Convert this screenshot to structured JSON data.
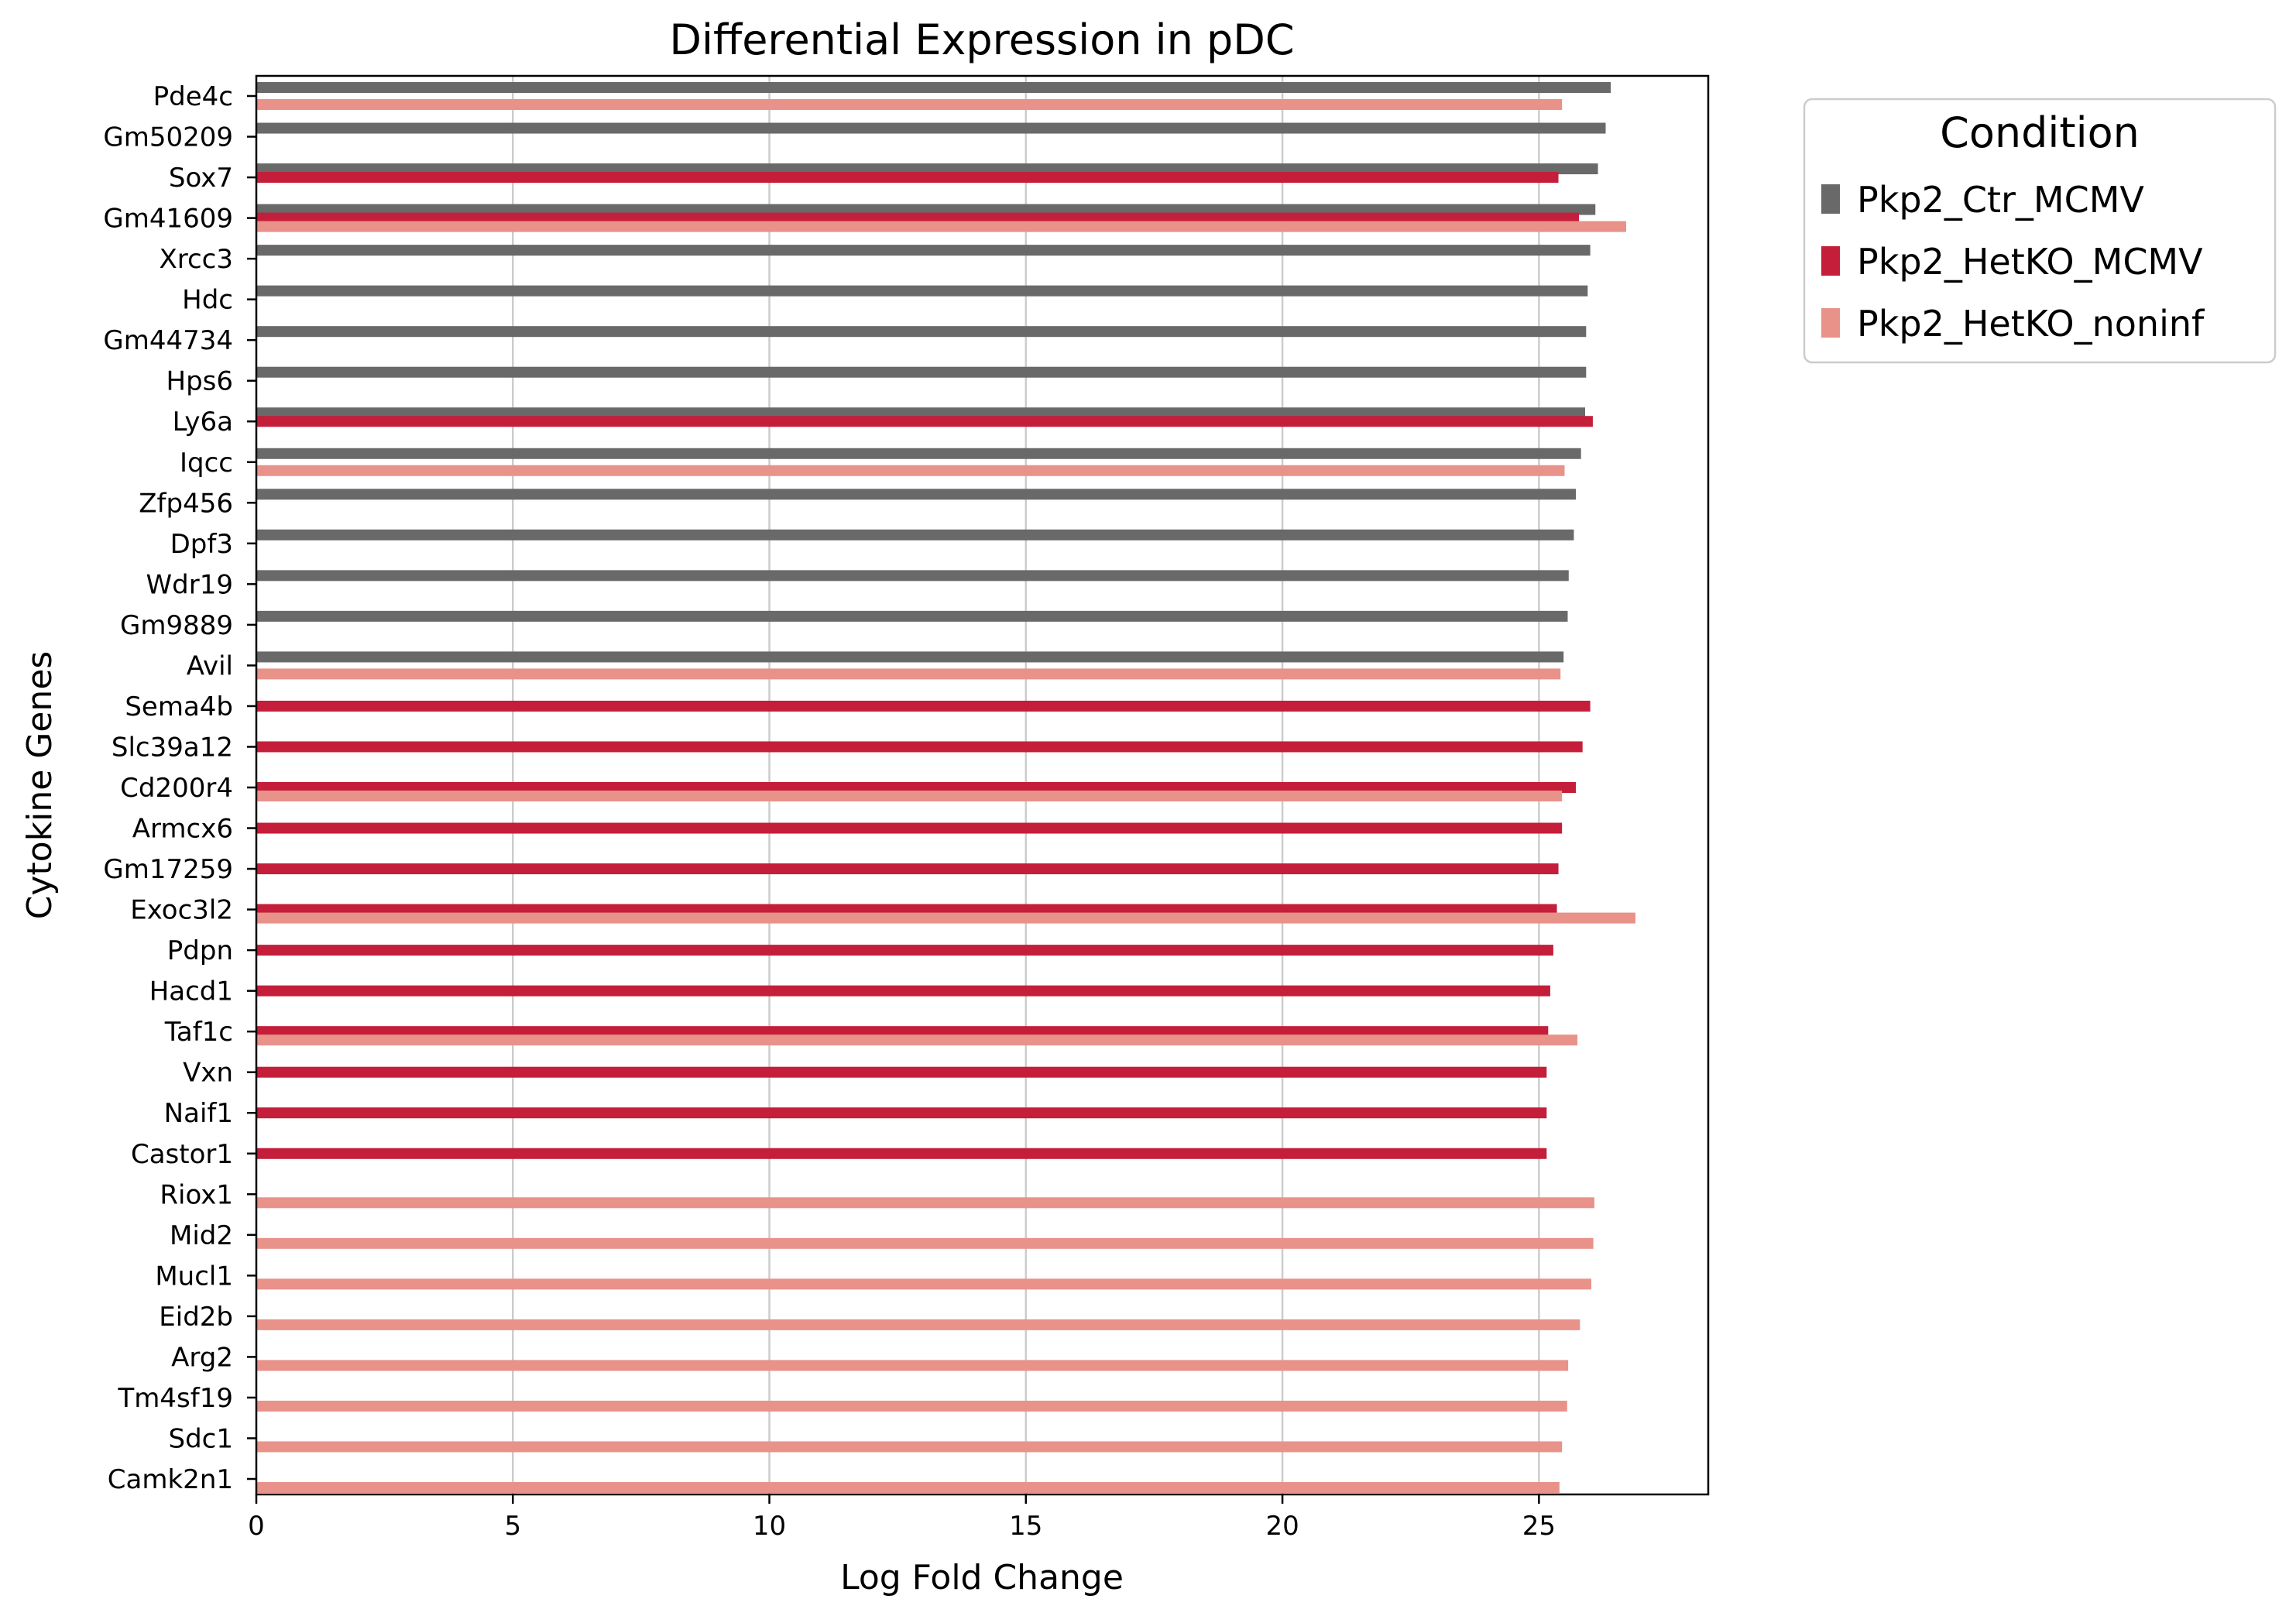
{
  "chart_data": {
    "type": "bar",
    "orientation": "horizontal",
    "title": "Differential Expression in pDC",
    "xlabel": "Log Fold Change",
    "ylabel": "Cytokine Genes",
    "xlim": [
      0,
      28.3
    ],
    "xticks": [
      0,
      5,
      10,
      15,
      20,
      25
    ],
    "grid": "vertical gridlines",
    "legend": {
      "title": "Condition",
      "placement": "outside-upper-right"
    },
    "categories": [
      "Pde4c",
      "Gm50209",
      "Sox7",
      "Gm41609",
      "Xrcc3",
      "Hdc",
      "Gm44734",
      "Hps6",
      "Ly6a",
      "Iqcc",
      "Zfp456",
      "Dpf3",
      "Wdr19",
      "Gm9889",
      "Avil",
      "Sema4b",
      "Slc39a12",
      "Cd200r4",
      "Armcx6",
      "Gm17259",
      "Exoc3l2",
      "Pdpn",
      "Hacd1",
      "Taf1c",
      "Vxn",
      "Naif1",
      "Castor1",
      "Riox1",
      "Mid2",
      "Mucl1",
      "Eid2b",
      "Arg2",
      "Tm4sf19",
      "Sdc1",
      "Camk2n1"
    ],
    "series": [
      {
        "name": "Pkp2_Ctr_MCMV",
        "color": "#696969",
        "values": [
          26.4,
          26.3,
          26.15,
          26.1,
          26.0,
          25.95,
          25.92,
          25.92,
          25.9,
          25.82,
          25.72,
          25.68,
          25.58,
          25.56,
          25.48,
          null,
          null,
          null,
          null,
          null,
          null,
          null,
          null,
          null,
          null,
          null,
          null,
          null,
          null,
          null,
          null,
          null,
          null,
          null,
          null
        ]
      },
      {
        "name": "Pkp2_HetKO_MCMV",
        "color": "#c41e3a",
        "values": [
          null,
          null,
          25.38,
          25.78,
          null,
          null,
          null,
          null,
          26.05,
          null,
          null,
          null,
          null,
          null,
          null,
          26.0,
          25.85,
          25.72,
          25.45,
          25.38,
          25.35,
          25.28,
          25.22,
          25.18,
          25.15,
          25.15,
          25.15,
          null,
          null,
          null,
          null,
          null,
          null,
          null,
          null
        ]
      },
      {
        "name": "Pkp2_HetKO_noninf",
        "color": "#e8928a",
        "values": [
          25.45,
          null,
          null,
          26.7,
          null,
          null,
          null,
          null,
          null,
          25.5,
          null,
          null,
          null,
          null,
          25.42,
          null,
          null,
          25.45,
          null,
          null,
          26.88,
          null,
          null,
          25.75,
          null,
          null,
          null,
          26.08,
          26.06,
          26.02,
          25.8,
          25.57,
          25.55,
          25.45,
          25.4
        ]
      }
    ]
  }
}
